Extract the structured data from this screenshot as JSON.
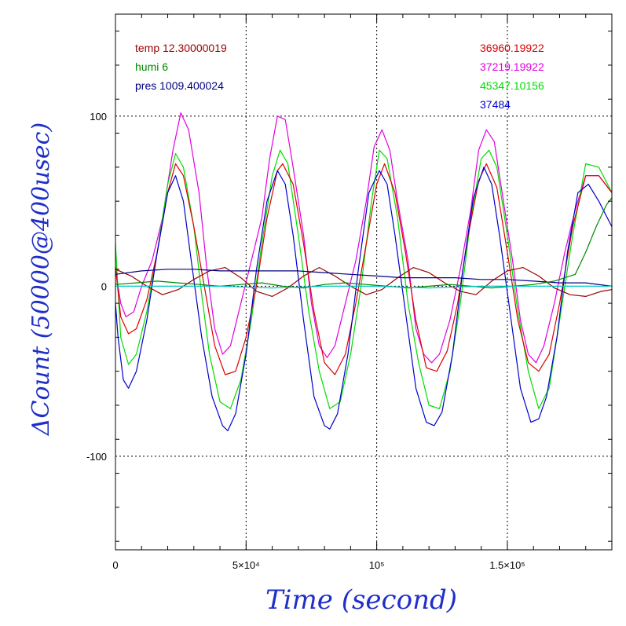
{
  "chart_data": {
    "type": "line",
    "xlabel": "Time (second)",
    "ylabel": "ΔCount (50000@400usec)",
    "xlim": [
      0,
      190000
    ],
    "ylim": [
      -155,
      160
    ],
    "grid": true,
    "x_ticks": [
      {
        "value": 0,
        "label": "0"
      },
      {
        "value": 50000,
        "label": "5×10⁴"
      },
      {
        "value": 100000,
        "label": "10⁵"
      },
      {
        "value": 150000,
        "label": "1.5×10⁵"
      }
    ],
    "y_ticks": [
      {
        "value": 100,
        "label": "100"
      },
      {
        "value": 0,
        "label": "0"
      },
      {
        "value": -100,
        "label": "-100"
      }
    ],
    "legend_left": [
      {
        "text": "temp 12.30000019",
        "color": "#990000"
      },
      {
        "text": "humi 6",
        "color": "#008800"
      },
      {
        "text": "pres 1009.400024",
        "color": "#000080"
      }
    ],
    "legend_right": [
      {
        "text": "36960.19922",
        "color": "#dd0000"
      },
      {
        "text": "37219.19922",
        "color": "#e000e0"
      },
      {
        "text": "45347.10156",
        "color": "#00dd00"
      },
      {
        "text": "37484",
        "color": "#0000cc"
      }
    ],
    "series": [
      {
        "color": "#e000e0",
        "x": [
          0,
          2000,
          4000,
          7000,
          10000,
          14000,
          18000,
          22000,
          25000,
          28000,
          32000,
          35000,
          38000,
          41000,
          44000,
          48000,
          52000,
          56000,
          59000,
          62000,
          65000,
          68000,
          72000,
          75000,
          78000,
          81000,
          84000,
          88000,
          92000,
          96000,
          99000,
          102000,
          105000,
          108000,
          112000,
          115000,
          118000,
          121000,
          124000,
          128000,
          132000,
          136000,
          139000,
          142000,
          145000,
          148000,
          152000,
          155000,
          158000,
          161000,
          164000,
          168000,
          172000,
          176000,
          180000,
          185000,
          190000
        ],
        "y": [
          10,
          -10,
          -18,
          -15,
          0,
          15,
          40,
          80,
          102,
          92,
          55,
          10,
          -25,
          -40,
          -35,
          -10,
          15,
          40,
          75,
          100,
          98,
          70,
          30,
          -10,
          -35,
          -42,
          -35,
          -10,
          15,
          50,
          82,
          92,
          80,
          50,
          15,
          -25,
          -40,
          -45,
          -40,
          -20,
          10,
          45,
          80,
          92,
          85,
          55,
          15,
          -20,
          -40,
          -45,
          -35,
          -10,
          20,
          45,
          65,
          65,
          55
        ]
      },
      {
        "color": "#00dd00",
        "x": [
          0,
          2000,
          5000,
          8000,
          12000,
          16000,
          20000,
          23000,
          26000,
          30000,
          33000,
          36000,
          40000,
          44000,
          48000,
          52000,
          56000,
          60000,
          63000,
          66000,
          70000,
          74000,
          78000,
          82000,
          86000,
          90000,
          94000,
          98000,
          101000,
          104000,
          108000,
          112000,
          116000,
          120000,
          124000,
          128000,
          132000,
          136000,
          140000,
          143000,
          146000,
          150000,
          154000,
          158000,
          162000,
          166000,
          170000,
          175000,
          180000,
          185000,
          190000
        ],
        "y": [
          25,
          -30,
          -46,
          -40,
          -15,
          20,
          60,
          78,
          70,
          35,
          -5,
          -40,
          -68,
          -72,
          -55,
          -20,
          25,
          65,
          80,
          72,
          30,
          -15,
          -50,
          -72,
          -68,
          -40,
          0,
          50,
          80,
          75,
          40,
          -10,
          -45,
          -70,
          -72,
          -50,
          -10,
          40,
          75,
          80,
          70,
          30,
          -15,
          -50,
          -72,
          -60,
          -20,
          30,
          72,
          70,
          55
        ]
      },
      {
        "color": "#dd0000",
        "x": [
          0,
          2000,
          5000,
          8000,
          12000,
          16000,
          20000,
          23000,
          26000,
          30000,
          34000,
          38000,
          42000,
          46000,
          50000,
          54000,
          58000,
          62000,
          64000,
          68000,
          72000,
          76000,
          80000,
          84000,
          88000,
          92000,
          96000,
          100000,
          103000,
          107000,
          111000,
          115000,
          119000,
          123000,
          127000,
          131000,
          135000,
          139000,
          142000,
          146000,
          150000,
          154000,
          158000,
          162000,
          166000,
          170000,
          175000,
          180000,
          185000,
          190000
        ],
        "y": [
          12,
          -18,
          -28,
          -25,
          -8,
          20,
          55,
          72,
          65,
          35,
          0,
          -35,
          -52,
          -50,
          -30,
          0,
          40,
          68,
          72,
          60,
          25,
          -15,
          -45,
          -52,
          -40,
          -10,
          25,
          60,
          72,
          55,
          20,
          -20,
          -48,
          -50,
          -38,
          -10,
          30,
          62,
          72,
          58,
          20,
          -20,
          -45,
          -50,
          -40,
          -10,
          35,
          65,
          65,
          55
        ]
      },
      {
        "color": "#0000cc",
        "x": [
          0,
          1000,
          3000,
          5000,
          8000,
          12000,
          16000,
          20000,
          23000,
          26000,
          29000,
          33000,
          37000,
          41000,
          43000,
          46000,
          50000,
          54000,
          58000,
          62000,
          65000,
          68000,
          72000,
          76000,
          80000,
          82000,
          85000,
          89000,
          93000,
          97000,
          101000,
          104000,
          107000,
          111000,
          115000,
          119000,
          122000,
          125000,
          129000,
          133000,
          137000,
          141000,
          144000,
          147000,
          151000,
          155000,
          159000,
          162000,
          165000,
          169000,
          173000,
          177000,
          181000,
          185000,
          190000
        ],
        "y": [
          -10,
          -30,
          -55,
          -60,
          -50,
          -20,
          20,
          55,
          65,
          50,
          15,
          -30,
          -65,
          -82,
          -85,
          -75,
          -40,
          10,
          50,
          68,
          60,
          30,
          -20,
          -65,
          -82,
          -84,
          -75,
          -40,
          10,
          55,
          68,
          60,
          30,
          -15,
          -60,
          -80,
          -82,
          -74,
          -40,
          10,
          52,
          70,
          60,
          30,
          -15,
          -60,
          -80,
          -78,
          -65,
          -30,
          20,
          55,
          60,
          50,
          35
        ]
      },
      {
        "color": "#990000",
        "x": [
          0,
          6000,
          12000,
          18000,
          24000,
          30000,
          36000,
          42000,
          48000,
          54000,
          60000,
          66000,
          72000,
          78000,
          84000,
          90000,
          96000,
          102000,
          108000,
          114000,
          120000,
          126000,
          132000,
          138000,
          144000,
          150000,
          156000,
          162000,
          168000,
          174000,
          180000,
          186000,
          190000
        ],
        "y": [
          10,
          6,
          0,
          -5,
          -2,
          4,
          9,
          11,
          5,
          -3,
          -6,
          -1,
          6,
          11,
          6,
          0,
          -5,
          -2,
          5,
          11,
          8,
          2,
          -3,
          -5,
          3,
          9,
          11,
          6,
          -1,
          -5,
          -6,
          -3,
          -2
        ]
      },
      {
        "color": "#000080",
        "x": [
          0,
          10000,
          20000,
          30000,
          40000,
          50000,
          60000,
          70000,
          80000,
          90000,
          100000,
          110000,
          120000,
          130000,
          140000,
          150000,
          160000,
          170000,
          180000,
          190000
        ],
        "y": [
          7,
          9,
          10,
          10,
          9,
          9,
          9,
          9,
          8,
          7,
          6,
          5,
          5,
          5,
          4,
          4,
          3,
          2,
          2,
          0
        ]
      },
      {
        "color": "#008800",
        "x": [
          0,
          8000,
          16000,
          24000,
          32000,
          40000,
          48000,
          56000,
          64000,
          72000,
          80000,
          88000,
          96000,
          104000,
          112000,
          120000,
          128000,
          136000,
          144000,
          152000,
          160000,
          168000,
          172000,
          176000,
          180000,
          184000,
          188000,
          190000
        ],
        "y": [
          1,
          2,
          3,
          2,
          1,
          0,
          1,
          2,
          0,
          -1,
          1,
          2,
          1,
          0,
          -1,
          0,
          1,
          0,
          -1,
          0,
          1,
          3,
          5,
          7,
          20,
          35,
          48,
          52
        ]
      },
      {
        "color": "#00c8c8",
        "x": [
          0,
          20000,
          40000,
          60000,
          80000,
          100000,
          120000,
          140000,
          160000,
          180000,
          190000
        ],
        "y": [
          0,
          0,
          0,
          -1,
          0,
          0,
          -1,
          0,
          0,
          0,
          0
        ]
      }
    ]
  }
}
